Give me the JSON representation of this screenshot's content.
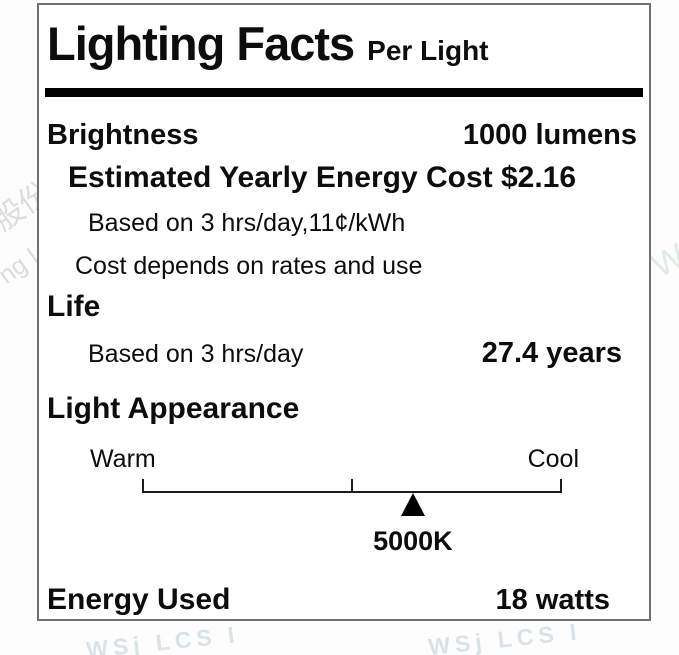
{
  "colors": {
    "label_border": "#707070",
    "text": "#0d0d0d",
    "header_rule": "#000000",
    "watermark_gray": "#cbcbcb",
    "watermark_blue_gray": "#cdd9df",
    "watermark_teal": "#d9e7de"
  },
  "label": {
    "title": "Lighting Facts",
    "subtitle": "Per Light",
    "brightness": {
      "label": "Brightness",
      "value": "1000 lumens"
    },
    "energy_cost": {
      "label": "Estimated Yearly Energy Cost $2.16",
      "basis": "Based on 3 hrs/day,11¢/kWh",
      "disclaimer": "Cost depends on rates and use"
    },
    "life": {
      "heading": "Life",
      "basis": "Based on 3 hrs/day",
      "value": "27.4 years"
    },
    "appearance": {
      "heading": "Light Appearance",
      "warm_label": "Warm",
      "cool_label": "Cool",
      "value": "5000K",
      "pointer_percent": 64.5
    },
    "energy_used": {
      "label": "Energy Used",
      "value": "18 watts"
    }
  },
  "watermarks": {
    "left_top": "股份",
    "left_mid": "ng I",
    "right_mid": "W",
    "bottom_left": "WSj LCS I",
    "bottom_right": "WSj LCS I"
  }
}
